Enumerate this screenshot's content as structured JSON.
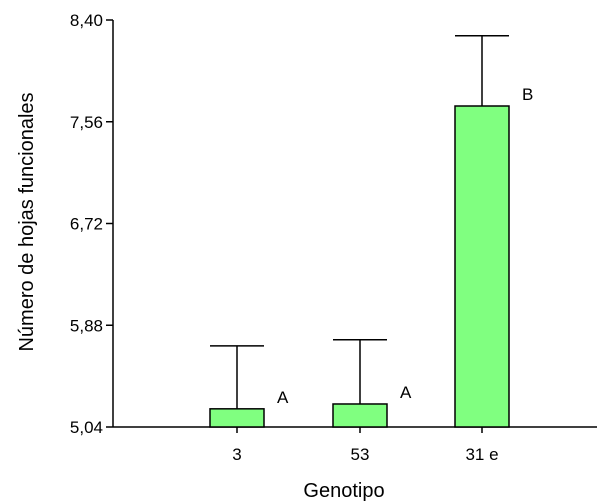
{
  "chart_data": {
    "type": "bar",
    "categories": [
      "3",
      "53",
      "31 e"
    ],
    "values": [
      5.19,
      5.23,
      7.69
    ],
    "error_upper": [
      5.71,
      5.76,
      8.27
    ],
    "group_letters": [
      "A",
      "A",
      "B"
    ],
    "xlabel": "Genotipo",
    "ylabel": "Número de hojas funcionales",
    "ylim": [
      5.04,
      8.4
    ],
    "yticks": [
      5.04,
      5.88,
      6.72,
      7.56,
      8.4
    ],
    "ytick_labels": [
      "5,04",
      "5,88",
      "6,72",
      "7,56",
      "8,40"
    ],
    "grid": false,
    "legend": "none",
    "bar_fill": "#80ff80",
    "bar_stroke": "#000000"
  }
}
